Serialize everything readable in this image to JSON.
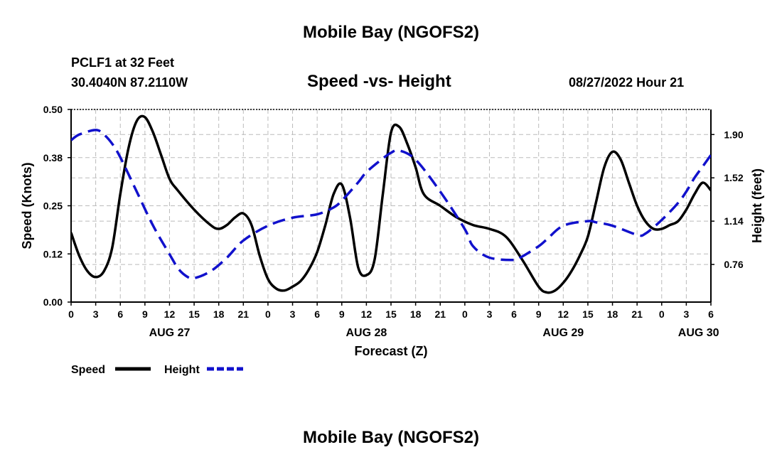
{
  "header": {
    "title": "Mobile Bay (NGOFS2)",
    "station": "PCLF1 at 32 Feet",
    "coords": "30.4040N  87.2110W",
    "subtitle": "Speed -vs- Height",
    "timestamp": "08/27/2022 Hour 21",
    "footer_title": "Mobile Bay (NGOFS2)"
  },
  "chart_data": {
    "type": "line",
    "title": "Speed -vs- Height",
    "xlabel": "Forecast (Z)",
    "ylabel": "Speed (Knots)",
    "y2label": "Height (feet)",
    "xlim": [
      0,
      78
    ],
    "ylim": [
      0,
      0.5
    ],
    "y2lim": [
      0.43,
      2.12
    ],
    "grid": true,
    "legend_position": "bottom-left",
    "x_ticks": [
      0,
      3,
      6,
      9,
      12,
      15,
      18,
      21,
      24,
      27,
      30,
      33,
      36,
      39,
      42,
      45,
      48,
      51,
      54,
      57,
      60,
      63,
      66,
      69,
      72,
      75,
      78
    ],
    "x_tick_labels": [
      "0",
      "3",
      "6",
      "9",
      "12",
      "15",
      "18",
      "21",
      "0",
      "3",
      "6",
      "9",
      "12",
      "15",
      "18",
      "21",
      "0",
      "3",
      "6",
      "9",
      "12",
      "15",
      "18",
      "21",
      "0",
      "3",
      "6"
    ],
    "date_labels": [
      {
        "x": 12,
        "label": "AUG 27"
      },
      {
        "x": 36,
        "label": "AUG 28"
      },
      {
        "x": 60,
        "label": "AUG 29"
      },
      {
        "x": 76.5,
        "label": "AUG 30"
      }
    ],
    "y_ticks": [
      0.0,
      0.125,
      0.25,
      0.375,
      0.5
    ],
    "y_tick_labels": [
      "0.00",
      "0.12",
      "0.25",
      "0.38",
      "0.50"
    ],
    "y2_ticks": [
      0.76,
      1.14,
      1.52,
      1.9
    ],
    "y2_tick_labels": [
      "0.76",
      "1.14",
      "1.52",
      "1.90"
    ],
    "series": [
      {
        "name": "Speed",
        "axis": "left",
        "color": "#000000",
        "dash": "solid",
        "x": [
          0,
          1,
          2,
          3,
          4,
          5,
          6,
          7,
          8,
          9,
          10,
          11,
          12,
          13,
          15,
          17,
          18,
          19,
          20,
          21,
          22,
          23,
          24,
          25,
          26,
          27,
          28,
          29,
          30,
          31,
          32,
          33,
          34,
          35,
          36,
          37,
          38,
          39,
          40,
          41,
          42,
          43,
          45,
          47,
          49,
          51,
          53,
          55,
          57,
          58,
          59,
          60,
          61,
          62,
          63,
          64,
          65,
          66,
          67,
          68,
          69,
          70,
          71,
          72,
          73,
          74,
          75,
          76,
          77,
          78
        ],
        "values": [
          0.18,
          0.12,
          0.08,
          0.065,
          0.08,
          0.14,
          0.28,
          0.4,
          0.47,
          0.48,
          0.44,
          0.38,
          0.32,
          0.29,
          0.24,
          0.2,
          0.19,
          0.2,
          0.22,
          0.23,
          0.2,
          0.12,
          0.06,
          0.035,
          0.03,
          0.04,
          0.055,
          0.085,
          0.13,
          0.2,
          0.28,
          0.305,
          0.22,
          0.09,
          0.07,
          0.11,
          0.28,
          0.44,
          0.455,
          0.41,
          0.35,
          0.28,
          0.25,
          0.22,
          0.2,
          0.19,
          0.17,
          0.11,
          0.04,
          0.025,
          0.03,
          0.05,
          0.08,
          0.12,
          0.17,
          0.26,
          0.35,
          0.39,
          0.37,
          0.31,
          0.25,
          0.21,
          0.19,
          0.19,
          0.2,
          0.21,
          0.24,
          0.28,
          0.31,
          0.29
        ]
      },
      {
        "name": "Height",
        "axis": "right",
        "color": "#1111cc",
        "dash": "dashed",
        "x": [
          0,
          1,
          3,
          4,
          5,
          6,
          8,
          10,
          12,
          13,
          14,
          15,
          17,
          19,
          21,
          24,
          27,
          30,
          32,
          33,
          35,
          36,
          38,
          39,
          40,
          42,
          45,
          48,
          49,
          51,
          54,
          55,
          57,
          58,
          60,
          63,
          64,
          66,
          69,
          70,
          72,
          74,
          75,
          76,
          77,
          78
        ],
        "values": [
          1.85,
          1.9,
          1.94,
          1.9,
          1.82,
          1.7,
          1.4,
          1.1,
          0.85,
          0.73,
          0.66,
          0.64,
          0.7,
          0.82,
          0.97,
          1.1,
          1.17,
          1.2,
          1.26,
          1.32,
          1.48,
          1.57,
          1.69,
          1.74,
          1.76,
          1.68,
          1.4,
          1.07,
          0.92,
          0.82,
          0.8,
          0.83,
          0.92,
          0.98,
          1.1,
          1.14,
          1.13,
          1.1,
          1.02,
          1.03,
          1.15,
          1.3,
          1.4,
          1.52,
          1.62,
          1.72
        ]
      }
    ]
  }
}
